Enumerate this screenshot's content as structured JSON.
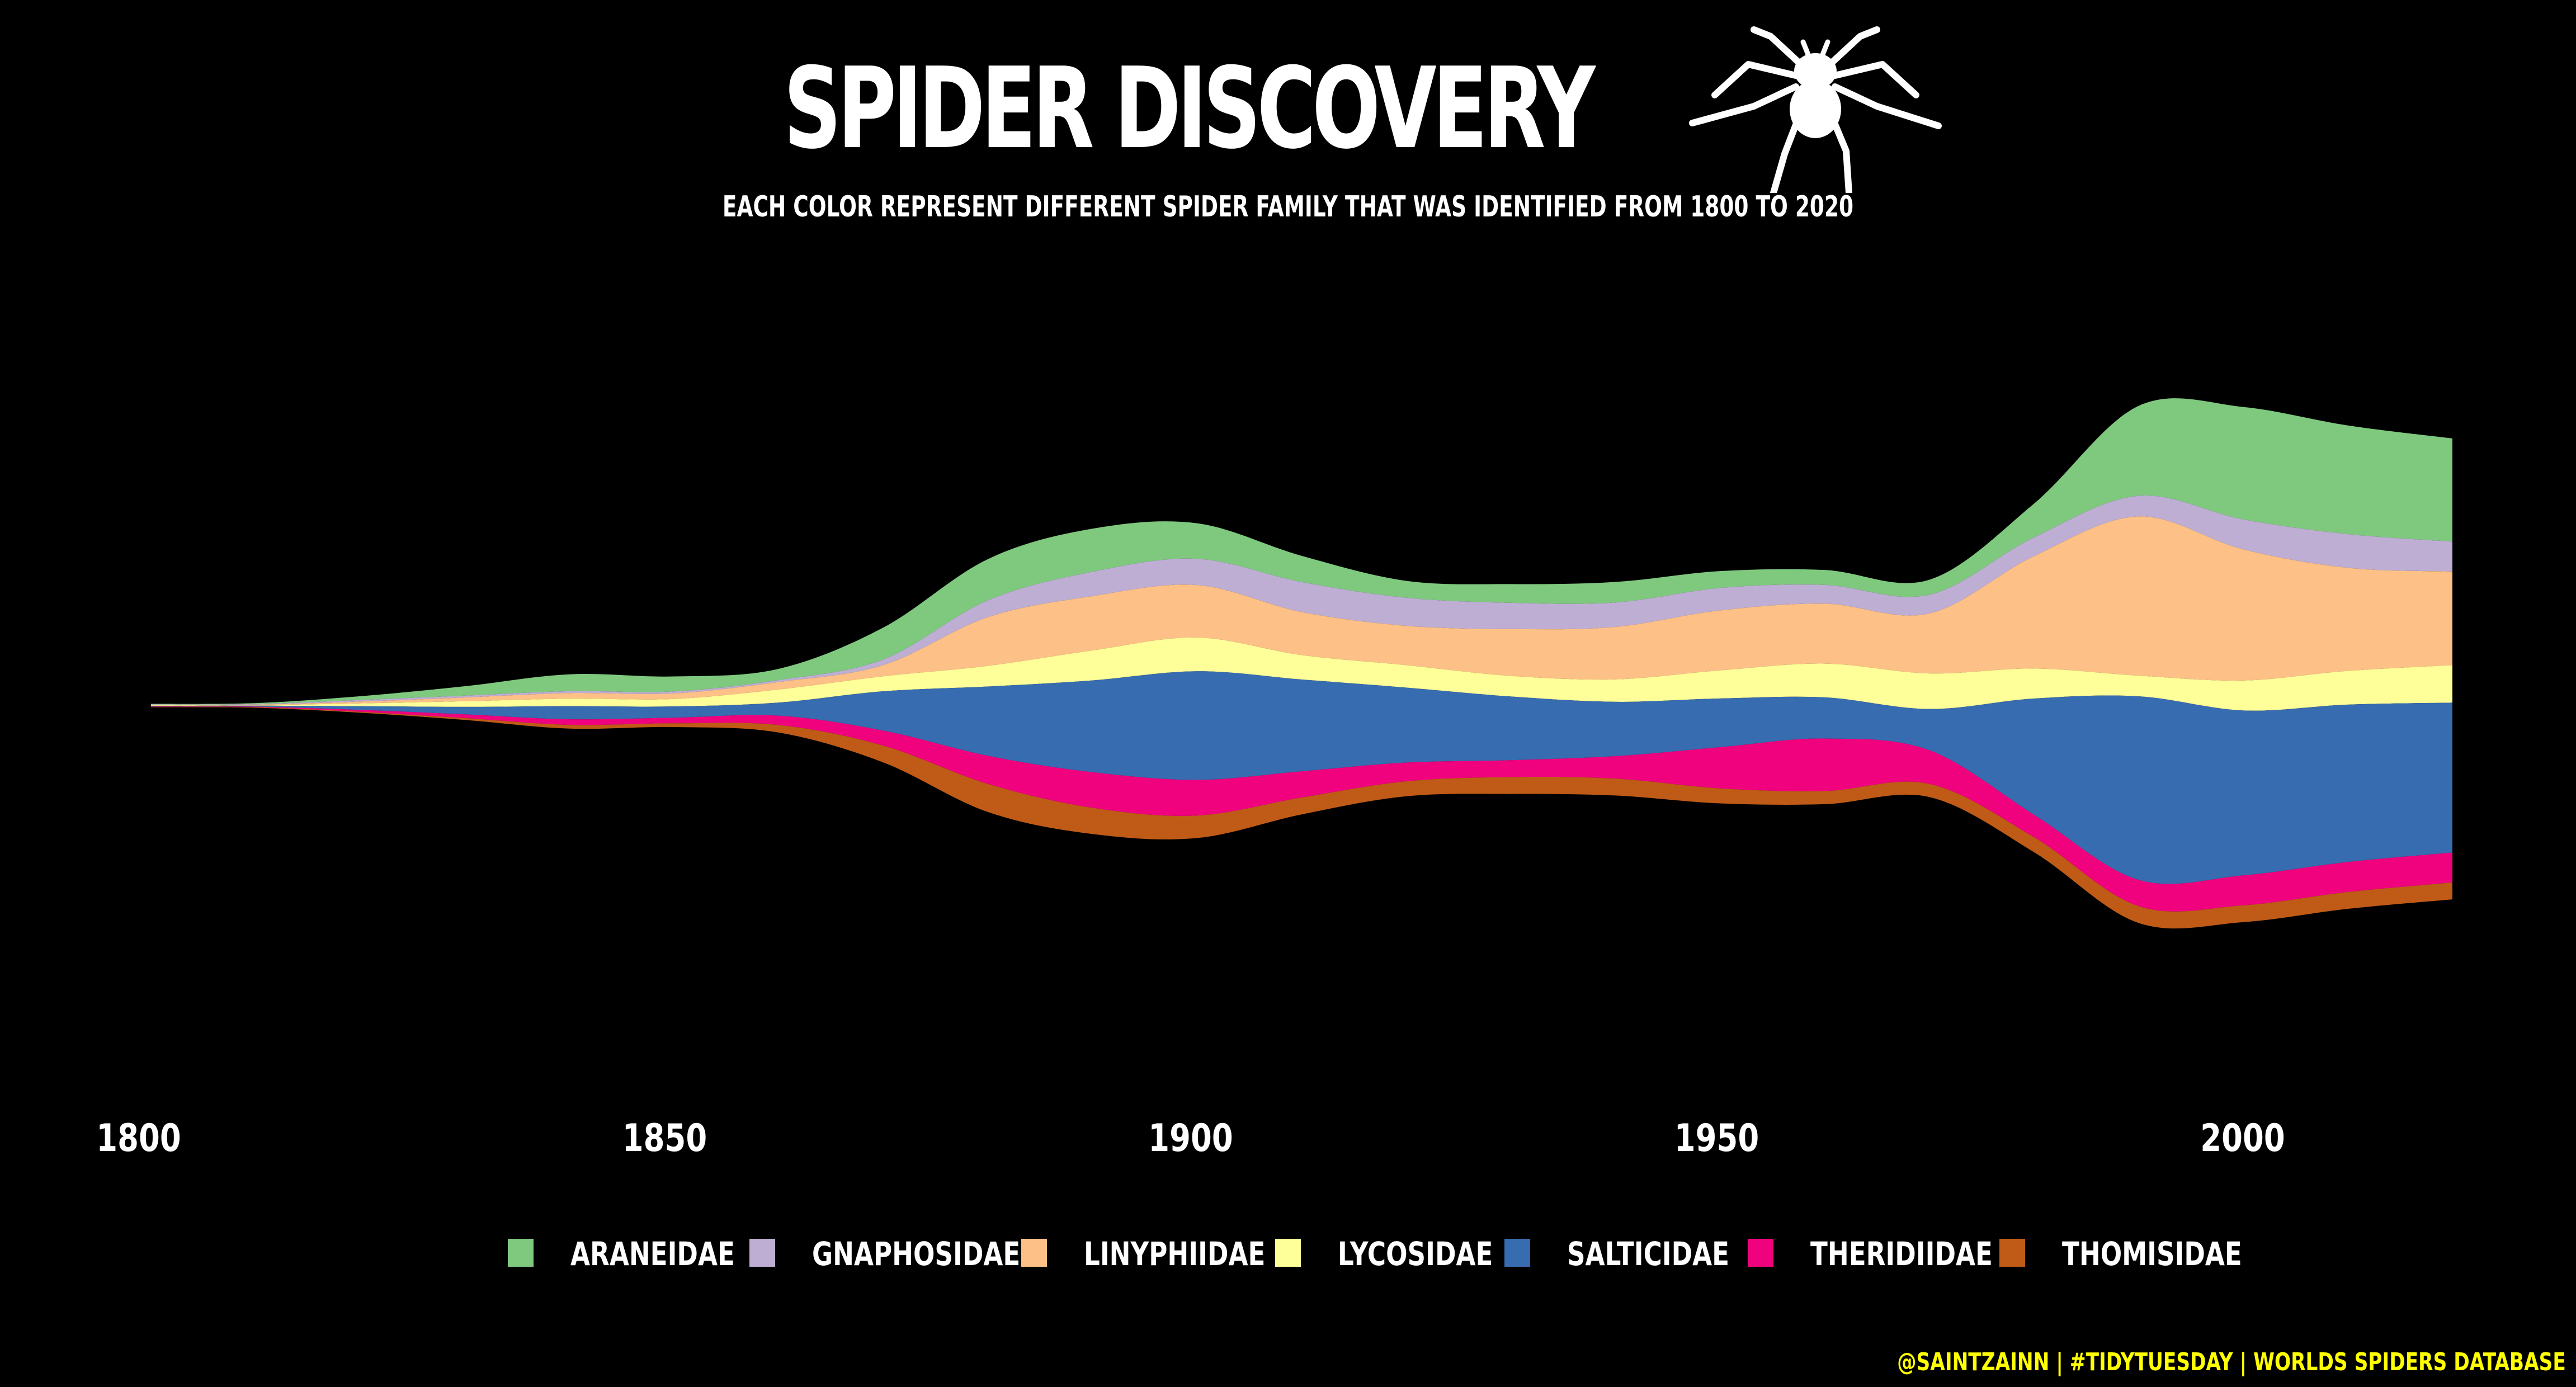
{
  "header": {
    "title": "SPIDER DISCOVERY",
    "subtitle": "EACH COLOR REPRESENT DIFFERENT SPIDER FAMILY THAT WAS IDENTIFIED FROM 1800 TO 2020",
    "icon": "spider-icon"
  },
  "caption": {
    "text": "@SAINTZAINN | #TIDYTUESDAY | WORLDS SPIDERS DATABASE",
    "color": "#ffff00"
  },
  "chart_data": {
    "type": "area",
    "style": "streamgraph",
    "xlim": [
      1800,
      2020
    ],
    "x_ticks": [
      1800,
      1850,
      1900,
      1950,
      2000
    ],
    "grid": false,
    "legend_position": "bottom",
    "background": "#000000",
    "x": [
      1800,
      1810,
      1820,
      1830,
      1840,
      1850,
      1860,
      1870,
      1880,
      1890,
      1900,
      1910,
      1920,
      1930,
      1940,
      1950,
      1960,
      1970,
      1980,
      1990,
      2000,
      2010,
      2020
    ],
    "series": [
      {
        "name": "ARANEIDAE",
        "color": "#7fc97f",
        "values": [
          0.3,
          0.5,
          2,
          5,
          9,
          8,
          6,
          17,
          22,
          23,
          19,
          14,
          9,
          10,
          11,
          9,
          8,
          8,
          18,
          48,
          60,
          58,
          55
        ]
      },
      {
        "name": "GNAPHOSIDAE",
        "color": "#beaed4",
        "values": [
          0.2,
          0.3,
          0.8,
          1,
          1,
          1,
          1,
          3,
          9,
          13,
          14,
          16,
          15,
          14,
          13,
          12,
          10,
          10,
          10,
          11,
          16,
          18,
          16
        ]
      },
      {
        "name": "LINYPHIIDAE",
        "color": "#fdc086",
        "values": [
          0.3,
          0.3,
          1,
          2,
          3,
          3,
          4,
          6,
          26,
          29,
          28,
          23,
          21,
          25,
          28,
          32,
          32,
          32,
          60,
          85,
          70,
          55,
          50
        ]
      },
      {
        "name": "LYCOSIDAE",
        "color": "#ffff99",
        "values": [
          0.3,
          0.3,
          1.5,
          3,
          4,
          4,
          7,
          8,
          11,
          16,
          18,
          13,
          12,
          11,
          12,
          15,
          18,
          19,
          16,
          11,
          16,
          18,
          20
        ]
      },
      {
        "name": "SALTICIDAE",
        "color": "#386cb0",
        "values": [
          0.3,
          0.5,
          2,
          4,
          7,
          6,
          7,
          21,
          37,
          49,
          58,
          49,
          40,
          34,
          29,
          26,
          22,
          22,
          62,
          98,
          88,
          84,
          80
        ]
      },
      {
        "name": "THERIDIIDAE",
        "color": "#f0027f",
        "values": [
          0.2,
          0.3,
          1,
          2,
          3,
          3,
          5,
          8,
          15,
          19,
          19,
          14,
          10,
          9,
          12,
          22,
          28,
          18,
          12,
          14,
          16,
          16,
          16
        ]
      },
      {
        "name": "THOMISIDAE",
        "color": "#bf5b17",
        "values": [
          0.2,
          0.3,
          0.5,
          1,
          2,
          2,
          4,
          9,
          15,
          14,
          12,
          9,
          8,
          9,
          9,
          8,
          7,
          7,
          8,
          9,
          9,
          9,
          9
        ]
      }
    ]
  }
}
